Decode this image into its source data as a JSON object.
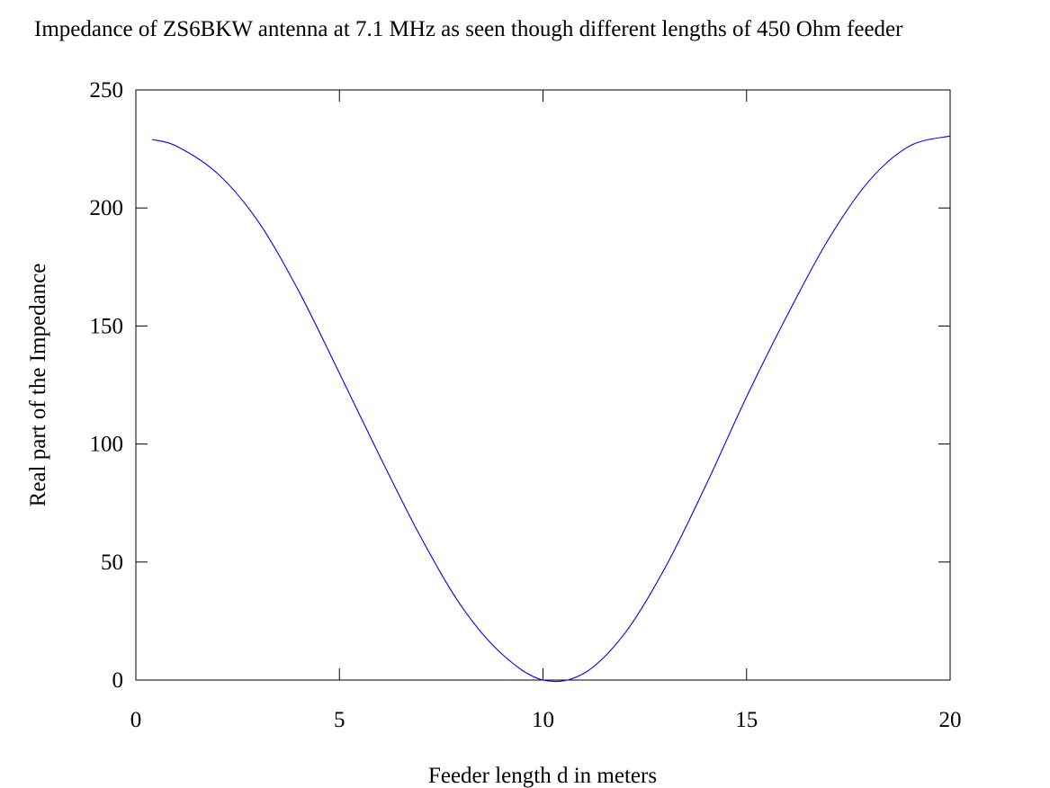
{
  "chart_data": {
    "type": "line",
    "title": "Impedance of ZS6BKW antenna at 7.1 MHz as seen though different lengths of 450 Ohm feeder",
    "xlabel": "Feeder length d in meters",
    "ylabel": "Real part of the Impedance",
    "xlim": [
      0,
      20
    ],
    "ylim": [
      0,
      250
    ],
    "xticks": [
      0,
      5,
      10,
      15,
      20
    ],
    "yticks": [
      0,
      50,
      100,
      150,
      200,
      250
    ],
    "grid": false,
    "legend": "none",
    "series_color": "#0000ff",
    "series": [
      {
        "x": [
          0.4,
          1,
          2,
          3,
          4,
          5,
          6,
          7,
          8,
          9,
          10,
          11,
          12,
          13,
          14,
          15,
          16,
          17,
          18,
          19,
          20
        ],
        "y": [
          229,
          226.2,
          214.7,
          194.4,
          164.8,
          130,
          94.5,
          60.5,
          31.2,
          10.9,
          0,
          2.8,
          19.6,
          47.6,
          82.5,
          120,
          154.6,
          186.4,
          211.3,
          226.2,
          230.5
        ]
      }
    ]
  }
}
